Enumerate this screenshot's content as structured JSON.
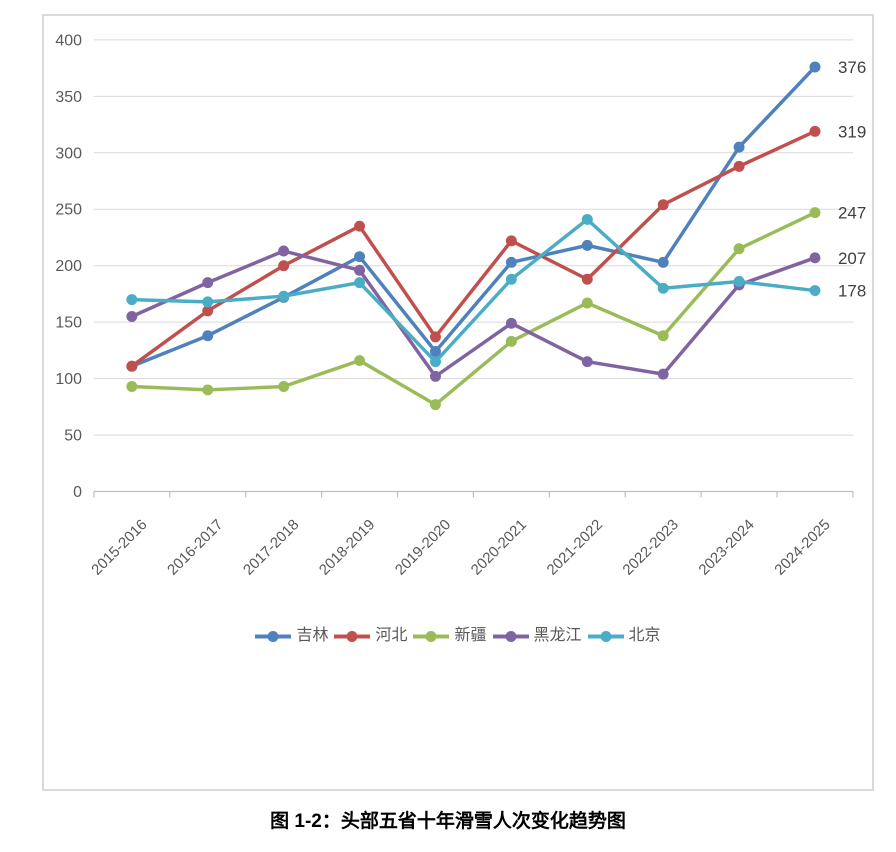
{
  "caption": "图 1-2：头部五省十年滑雪人次变化趋势图",
  "chart_data": {
    "type": "line",
    "title": "",
    "xlabel": "",
    "ylabel": "",
    "categories": [
      "2015-2016",
      "2016-2017",
      "2017-2018",
      "2018-2019",
      "2019-2020",
      "2020-2021",
      "2021-2022",
      "2022-2023",
      "2023-2024",
      "2024-2025"
    ],
    "series": [
      {
        "name": "吉林",
        "color": "#4F81BD",
        "values": [
          111,
          138,
          172,
          208,
          124,
          203,
          218,
          203,
          305,
          376
        ]
      },
      {
        "name": "河北",
        "color": "#C0504D",
        "values": [
          111,
          160,
          200,
          235,
          137,
          222,
          188,
          254,
          288,
          319
        ]
      },
      {
        "name": "新疆",
        "color": "#9BBB59",
        "values": [
          93,
          90,
          93,
          116,
          77,
          133,
          167,
          138,
          215,
          247
        ]
      },
      {
        "name": "黑龙江",
        "color": "#8064A2",
        "values": [
          155,
          185,
          213,
          196,
          102,
          149,
          115,
          104,
          183,
          207
        ]
      },
      {
        "name": "北京",
        "color": "#4BACC6",
        "values": [
          170,
          168,
          173,
          185,
          115,
          188,
          241,
          180,
          186,
          178
        ]
      }
    ],
    "end_labels": [
      376,
      319,
      247,
      207,
      178
    ],
    "y_ticks": [
      0,
      50,
      100,
      150,
      200,
      250,
      300,
      350,
      400
    ],
    "ylim": [
      0,
      400
    ],
    "grid": true,
    "legend_position": "bottom",
    "marker": "circle"
  },
  "colors": {
    "gridline": "#D9D9D9",
    "axis_line": "#BFBFBF",
    "axis_text": "#595959",
    "end_label": "#404040",
    "frame_border": "#D9D9D9"
  }
}
